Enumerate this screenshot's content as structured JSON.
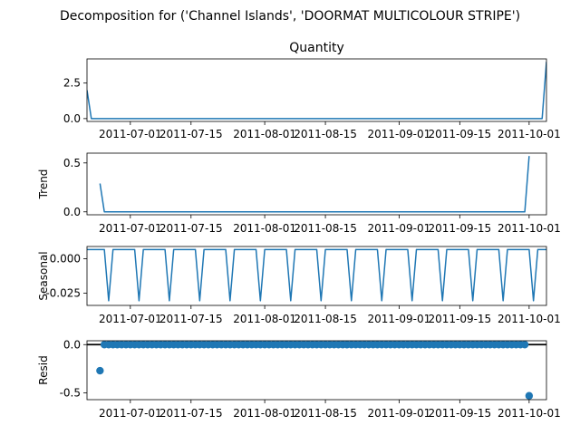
{
  "suptitle": "Decomposition for ('Channel Islands', 'DOORMAT MULTICOLOUR STRIPE')",
  "colors": {
    "line": "#1f77b4",
    "axis": "#000000",
    "background": "#ffffff"
  },
  "shared_x": {
    "type": "date",
    "range": [
      "2011-06-21",
      "2011-10-05"
    ],
    "tick_labels": [
      "2011-07-01",
      "2011-07-15",
      "2011-08-01",
      "2011-08-15",
      "2011-09-01",
      "2011-09-15",
      "2011-10-01"
    ]
  },
  "chart_data": [
    {
      "type": "line",
      "title": "Quantity",
      "ylabel": "",
      "ylim": [
        -0.2,
        4.2
      ],
      "yticks": [
        "0.0",
        "2.5"
      ],
      "x": [
        "2011-06-21",
        "2011-06-22",
        "2011-10-04",
        "2011-10-05"
      ],
      "values": [
        2,
        0,
        0,
        4
      ]
    },
    {
      "type": "line",
      "title": "",
      "ylabel": "Trend",
      "ylim": [
        -0.03,
        0.6
      ],
      "yticks": [
        "0.0",
        "0.5"
      ],
      "x": [
        "2011-06-24",
        "2011-06-25",
        "2011-09-30",
        "2011-10-01"
      ],
      "values": [
        0.29,
        0,
        0,
        0.57
      ]
    },
    {
      "type": "line",
      "title": "",
      "ylabel": "Seasonal",
      "ylim": [
        -0.034,
        0.009
      ],
      "yticks": [
        "0.000",
        "-0.025"
      ],
      "period_days": 7,
      "first_cycle_start": "2011-06-20",
      "weekly_pattern": [
        0.0068,
        0.0068,
        0.0068,
        0.0068,
        0.0068,
        0.0068,
        -0.0306
      ],
      "x_end": "2011-10-05"
    },
    {
      "type": "scatter",
      "title": "",
      "ylabel": "Resid",
      "ylim": [
        -0.57,
        0.04
      ],
      "yticks": [
        "0.0",
        "-0.5"
      ],
      "baseline": 0,
      "points": [
        [
          "2011-06-24",
          -0.27
        ],
        [
          "2011-10-01",
          -0.53
        ]
      ],
      "zero_range": [
        "2011-06-25",
        "2011-09-30"
      ]
    }
  ]
}
